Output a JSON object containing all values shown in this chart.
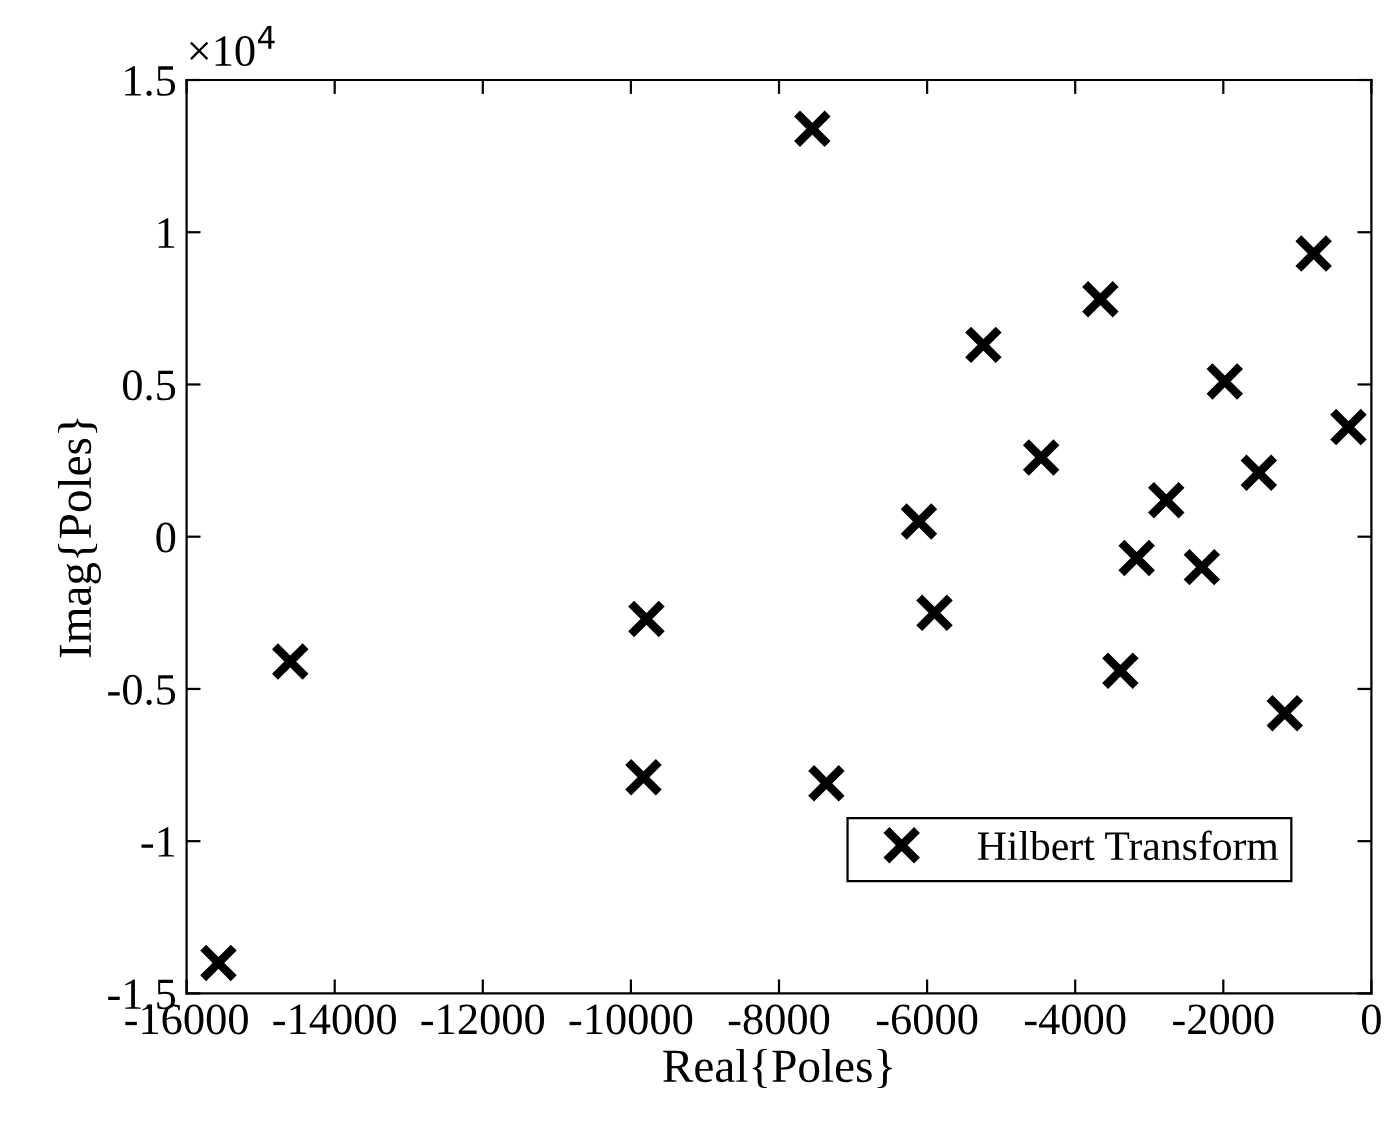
{
  "chart_data": {
    "type": "scatter",
    "xlabel": "Real{Poles}",
    "ylabel": "Imag{Poles}",
    "x": [
      -15570,
      -14600,
      -9790,
      -9830,
      -7550,
      -6110,
      -5240,
      -4460,
      -3660,
      -3170,
      -2770,
      -2290,
      -1980,
      -1520,
      -780,
      -310,
      -5900,
      -7360,
      -3390,
      -1170
    ],
    "series": [
      {
        "name": "Hilbert Transform",
        "color": "#000000",
        "values": [
          -1.4,
          -0.41,
          -0.27,
          -0.79,
          1.34,
          0.05,
          0.63,
          0.26,
          0.78,
          -0.07,
          0.12,
          -0.1,
          0.51,
          0.21,
          0.93,
          0.36,
          -0.25,
          -0.81,
          -0.44,
          -0.58
        ]
      }
    ],
    "marker": "cross",
    "legend": "bottom right",
    "grid": false,
    "xlim": [
      -16000,
      0
    ],
    "xticks": [
      -16000,
      -14000,
      -12000,
      -10000,
      -8000,
      -6000,
      -4000,
      -2000,
      0
    ],
    "ylim": [
      -1.5,
      1.5
    ],
    "yticks": [
      -1.5,
      -1,
      -0.5,
      0,
      0.5,
      1,
      1.5
    ],
    "annotations": [
      "×10$^{4}$"
    ]
  }
}
